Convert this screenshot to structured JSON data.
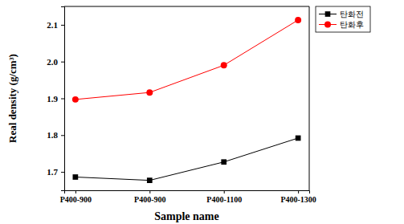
{
  "chart_data": {
    "type": "line",
    "x_label": "Sample name",
    "y_label": "Real density (g/cm³)",
    "categories": [
      "P400-900",
      "P400-900",
      "P400-1100",
      "P400-1300"
    ],
    "series": [
      {
        "name": "탄화전",
        "color": "#000000",
        "marker": "square",
        "values": [
          1.686,
          1.677,
          1.727,
          1.792
        ]
      },
      {
        "name": "탄화후",
        "color": "#ff0000",
        "marker": "circle",
        "values": [
          1.897,
          1.916,
          1.99,
          2.113
        ]
      }
    ],
    "ylim": [
      1.65,
      2.15
    ],
    "yticks": [
      1.7,
      1.8,
      1.9,
      {
        "value": 2,
        "label": "2.0"
      },
      2.1
    ],
    "legend": "upper right",
    "grid": false
  }
}
